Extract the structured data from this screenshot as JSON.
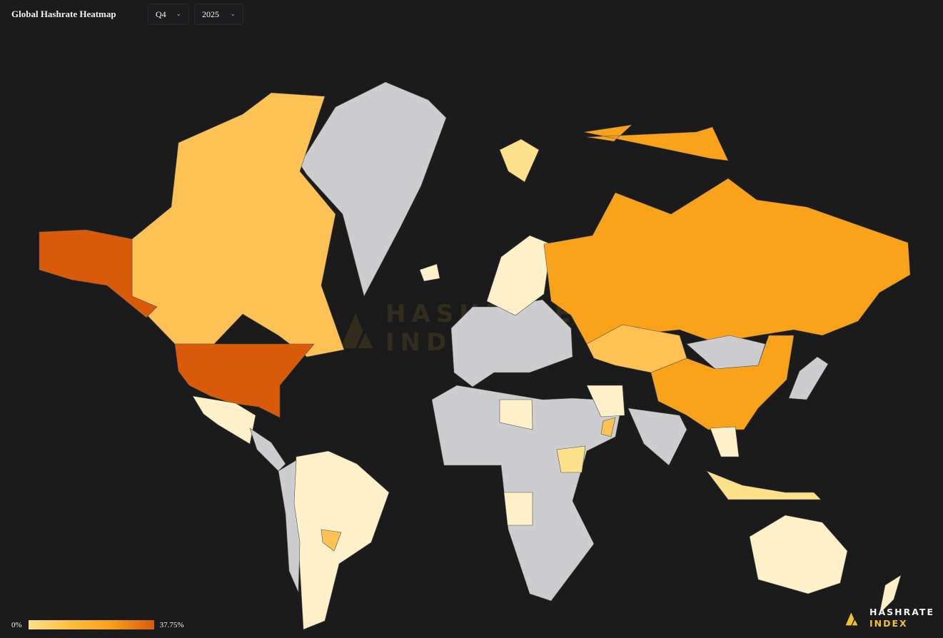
{
  "header": {
    "title": "Global Hashrate Heatmap",
    "quarter": "Q4",
    "year": "2025"
  },
  "legend": {
    "min_label": "0%",
    "max_label": "37.75%",
    "colors": [
      "#fde08a",
      "#fbbd3c",
      "#f9a11b",
      "#d95b0a"
    ]
  },
  "logo": {
    "line1": "HASHRATE",
    "line2": "INDEX"
  },
  "watermark": {
    "line1": "HASHRATE",
    "line2": "INDEX"
  },
  "map": {
    "background": "#1b1b1c",
    "no_data_color": "#cdcdcf",
    "regions": [
      {
        "id": "greenland",
        "fill": "#cdcdcf"
      },
      {
        "id": "canada",
        "fill": "#fdc253"
      },
      {
        "id": "alaska",
        "fill": "#d95b0a"
      },
      {
        "id": "united-states",
        "fill": "#d95b0a"
      },
      {
        "id": "mexico",
        "fill": "#fef0c8"
      },
      {
        "id": "central-america",
        "fill": "#cdcdcf"
      },
      {
        "id": "south-america",
        "fill": "#fef0c8"
      },
      {
        "id": "andes",
        "fill": "#cdcdcf"
      },
      {
        "id": "paraguay",
        "fill": "#fdc253"
      },
      {
        "id": "europe",
        "fill": "#cdcdcf"
      },
      {
        "id": "scandinavia",
        "fill": "#fef0c8"
      },
      {
        "id": "iceland",
        "fill": "#fef0c8"
      },
      {
        "id": "russia",
        "fill": "#faa31a"
      },
      {
        "id": "kazakhstan",
        "fill": "#fdc253"
      },
      {
        "id": "mongolia",
        "fill": "#cdcdcf"
      },
      {
        "id": "china",
        "fill": "#faa31a"
      },
      {
        "id": "africa-middle-east",
        "fill": "#cdcdcf"
      },
      {
        "id": "iran",
        "fill": "#fef0c8"
      },
      {
        "id": "libya",
        "fill": "#fef0c8"
      },
      {
        "id": "ethiopia",
        "fill": "#fde08a"
      },
      {
        "id": "angola",
        "fill": "#fef0c8"
      },
      {
        "id": "oman",
        "fill": "#fdc253"
      },
      {
        "id": "india",
        "fill": "#cdcdcf"
      },
      {
        "id": "southeast-asia",
        "fill": "#fef0c8"
      },
      {
        "id": "indonesia",
        "fill": "#fde08a"
      },
      {
        "id": "japan",
        "fill": "#cdcdcf"
      },
      {
        "id": "australia",
        "fill": "#fef0c8"
      },
      {
        "id": "new-zealand",
        "fill": "#fef0c8"
      },
      {
        "id": "svalbard",
        "fill": "#fde08a"
      },
      {
        "id": "arctic-islands",
        "fill": "#faa31a"
      }
    ]
  }
}
